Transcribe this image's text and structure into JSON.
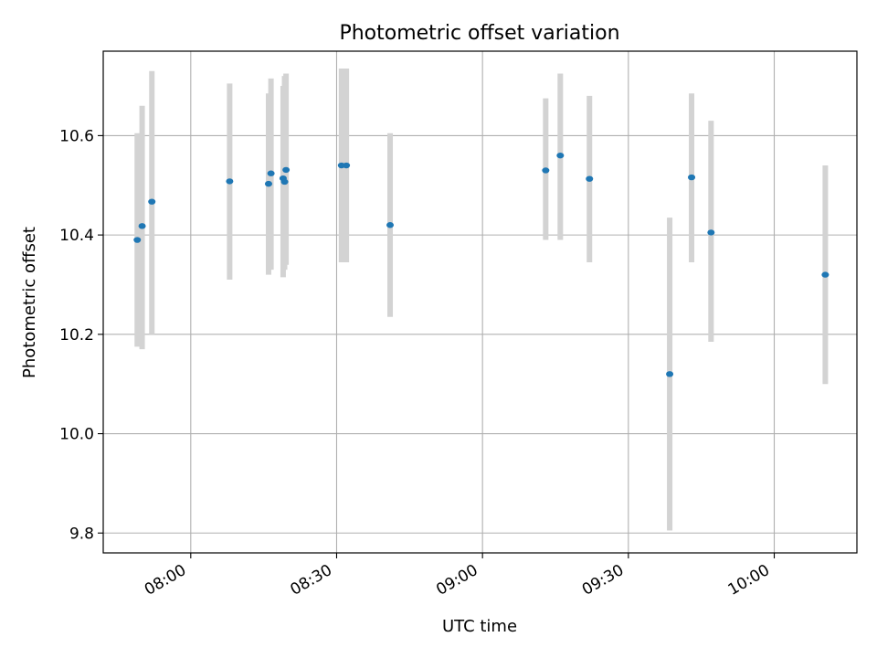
{
  "chart_data": {
    "type": "scatter",
    "title": "Photometric offset variation",
    "xlabel": "UTC time",
    "ylabel": "Photometric offset",
    "x_unit": "UTC HH:MM",
    "xlim": [
      "07:42",
      "10:17"
    ],
    "ylim": [
      9.76,
      10.77
    ],
    "grid": true,
    "x_ticks": [
      "08:00",
      "08:30",
      "09:00",
      "09:30",
      "10:00"
    ],
    "y_ticks": [
      "9.8",
      "10.0",
      "10.2",
      "10.4",
      "10.6"
    ],
    "y_tick_values": [
      9.8,
      10.0,
      10.2,
      10.4,
      10.6
    ],
    "marker_color": "#1f77b4",
    "errorbar_color": "#d3d3d3",
    "series": [
      {
        "points": [
          {
            "x": "07:49",
            "y": 10.39,
            "lo": 10.175,
            "hi": 10.605
          },
          {
            "x": "07:50",
            "y": 10.418,
            "lo": 10.17,
            "hi": 10.66
          },
          {
            "x": "07:52",
            "y": 10.467,
            "lo": 10.2,
            "hi": 10.73
          },
          {
            "x": "08:08",
            "y": 10.508,
            "lo": 10.31,
            "hi": 10.705
          },
          {
            "x": "08:16",
            "y": 10.503,
            "lo": 10.32,
            "hi": 10.685
          },
          {
            "x": "08:16.5",
            "y": 10.524,
            "lo": 10.33,
            "hi": 10.715
          },
          {
            "x": "08:19",
            "y": 10.514,
            "lo": 10.315,
            "hi": 10.7
          },
          {
            "x": "08:19.3",
            "y": 10.507,
            "lo": 10.33,
            "hi": 10.72
          },
          {
            "x": "08:19.6",
            "y": 10.531,
            "lo": 10.34,
            "hi": 10.725
          },
          {
            "x": "08:31",
            "y": 10.54,
            "lo": 10.345,
            "hi": 10.735
          },
          {
            "x": "08:32",
            "y": 10.54,
            "lo": 10.345,
            "hi": 10.735
          },
          {
            "x": "08:41",
            "y": 10.42,
            "lo": 10.235,
            "hi": 10.605
          },
          {
            "x": "09:13",
            "y": 10.53,
            "lo": 10.39,
            "hi": 10.675
          },
          {
            "x": "09:16",
            "y": 10.56,
            "lo": 10.39,
            "hi": 10.725
          },
          {
            "x": "09:22",
            "y": 10.513,
            "lo": 10.345,
            "hi": 10.68
          },
          {
            "x": "09:38.5",
            "y": 10.12,
            "lo": 9.805,
            "hi": 10.435
          },
          {
            "x": "09:43",
            "y": 10.516,
            "lo": 10.345,
            "hi": 10.685
          },
          {
            "x": "09:47",
            "y": 10.405,
            "lo": 10.185,
            "hi": 10.63
          },
          {
            "x": "10:10.5",
            "y": 10.32,
            "lo": 10.1,
            "hi": 10.54
          }
        ]
      }
    ]
  }
}
